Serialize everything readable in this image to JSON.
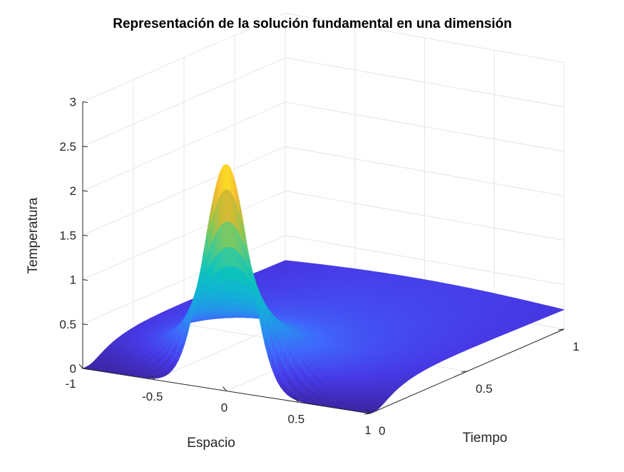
{
  "chart_data": {
    "type": "surface",
    "title": "Representación de la solución fundamental en una dimensión",
    "xlabel": "Espacio",
    "ylabel": "Tiempo",
    "zlabel": "Temperatura",
    "x_range": [
      -1,
      1
    ],
    "y_range": [
      0,
      1
    ],
    "z_range": [
      0,
      3
    ],
    "x_ticks": [
      "-1",
      "-0.5",
      "0",
      "0.5",
      "1"
    ],
    "y_ticks": [
      "0",
      "0.5",
      "1"
    ],
    "z_ticks": [
      "0",
      "0.5",
      "1",
      "1.5",
      "2",
      "2.5",
      "3"
    ],
    "peak": {
      "x": 0,
      "y": 0.02,
      "z": 2.55
    },
    "grid": true,
    "colormap": "parula"
  }
}
